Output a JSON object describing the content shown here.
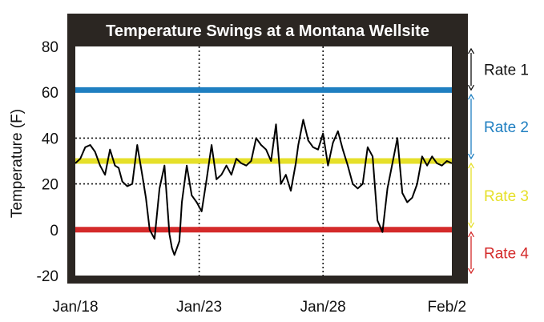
{
  "chart_data": {
    "type": "line",
    "title": "Temperature Swings at a Montana Wellsite",
    "ylabel": "Temperature (F)",
    "xlabel": "",
    "ylim": [
      -20,
      80
    ],
    "xlim": [
      18,
      33.2
    ],
    "yticks": [
      80,
      60,
      40,
      20,
      0,
      -20
    ],
    "xticks": [
      {
        "label": "Jan/18",
        "value": 18
      },
      {
        "label": "Jan/23",
        "value": 23
      },
      {
        "label": "Jan/28",
        "value": 28
      },
      {
        "label": "Feb/2",
        "value": 33
      }
    ],
    "grid": {
      "x_dotted_at": [
        23,
        28
      ],
      "y_dotted_at": [
        40,
        20
      ]
    },
    "series": [
      {
        "x": [
          18.0,
          18.2,
          18.4,
          18.6,
          18.8,
          19.0,
          19.2,
          19.4,
          19.6,
          19.75,
          19.9,
          20.1,
          20.3,
          20.5,
          20.7,
          20.85,
          21.0,
          21.2,
          21.4,
          21.6,
          21.8,
          21.9,
          22.0,
          22.2,
          22.3,
          22.5,
          22.7,
          22.9,
          23.1,
          23.3,
          23.5,
          23.7,
          23.9,
          24.1,
          24.3,
          24.5,
          24.7,
          24.9,
          25.1,
          25.3,
          25.5,
          25.7,
          25.9,
          26.1,
          26.3,
          26.5,
          26.7,
          26.9,
          27.0,
          27.2,
          27.4,
          27.6,
          27.8,
          28.0,
          28.2,
          28.4,
          28.6,
          28.8,
          29.0,
          29.2,
          29.4,
          29.6,
          29.8,
          30.0,
          30.2,
          30.4,
          30.6,
          30.8,
          31.0,
          31.2,
          31.4,
          31.6,
          31.8,
          32.0,
          32.2,
          32.4,
          32.6,
          32.8,
          33.0,
          33.2
        ],
        "y": [
          29,
          31,
          36,
          37,
          34,
          28,
          24,
          35,
          28,
          27,
          21,
          19,
          20,
          37,
          24,
          14,
          0,
          -4,
          18,
          28,
          -2,
          -8,
          -11,
          -5,
          12,
          28,
          15,
          12,
          8,
          22,
          37,
          22,
          24,
          28,
          24,
          31,
          29,
          28,
          30,
          40,
          37,
          35,
          30,
          46,
          20,
          24,
          17,
          29,
          37,
          48,
          39,
          36,
          35,
          42,
          28,
          38,
          43,
          35,
          28,
          20,
          18,
          20,
          36,
          32,
          4,
          -1,
          18,
          29,
          40,
          16,
          12,
          14,
          20,
          32,
          28,
          32,
          29,
          28,
          30,
          29
        ]
      }
    ],
    "bands": [
      {
        "label": "Rate 1",
        "value": 61,
        "color": "#1f7fc1",
        "range": [
          60,
          80
        ],
        "label_color": "#111111"
      },
      {
        "label": "Rate 2",
        "value": 30,
        "color": "#e6e02a",
        "range": [
          30,
          60
        ],
        "label_color": "#1f7fc1"
      },
      {
        "label": "Rate 3",
        "value": 0,
        "color": "#d42a2a",
        "range": [
          0,
          30
        ],
        "label_color": "#e6e02a"
      },
      {
        "label": "Rate 4",
        "value": null,
        "color": "#d42a2a",
        "range": [
          -20,
          0
        ],
        "label_color": "#d42a2a"
      }
    ],
    "frame_color": "#2b2622",
    "line_color": "#000000"
  }
}
